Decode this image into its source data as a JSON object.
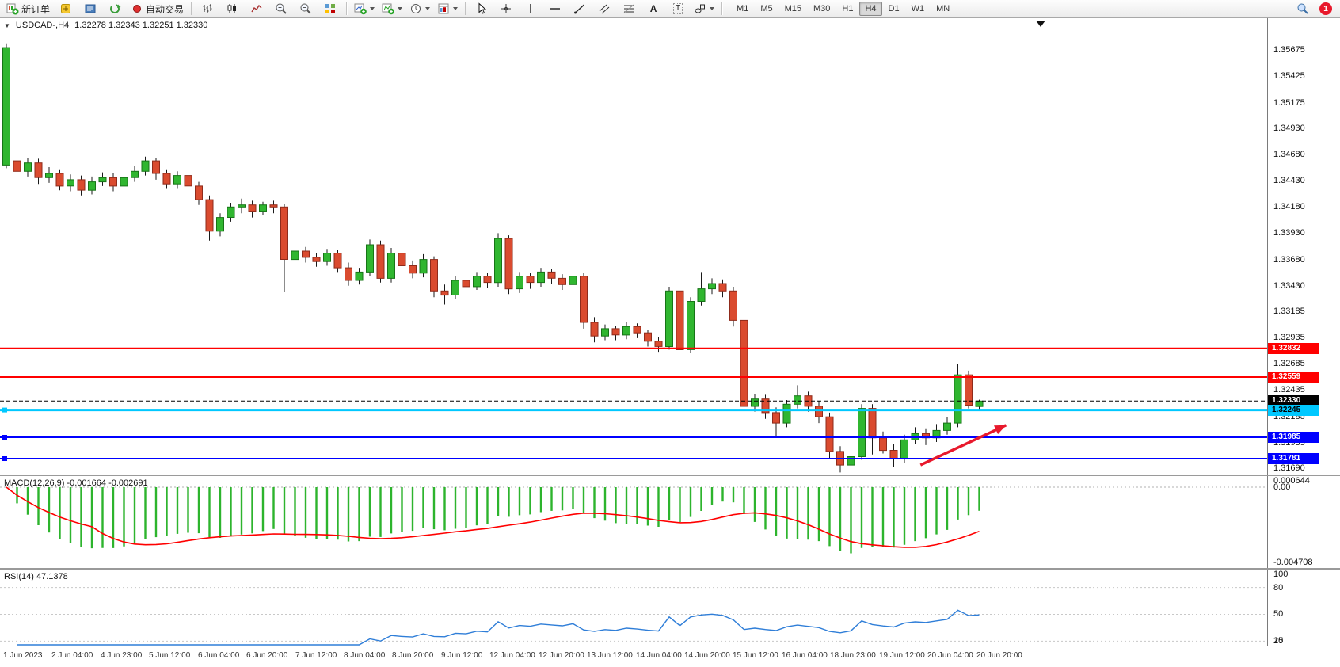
{
  "toolbar": {
    "new_order": "新订单",
    "auto_trading": "自动交易",
    "text_tool": "A",
    "label_tool": "T",
    "timeframes": [
      "M1",
      "M5",
      "M15",
      "M30",
      "H1",
      "H4",
      "D1",
      "W1",
      "MN"
    ],
    "active_timeframe": "H4",
    "notification_count": "1"
  },
  "chart": {
    "expander": "▼",
    "symbol": "USDCAD-,H4",
    "ohlc": "1.32278 1.32343 1.32251 1.32330",
    "price_axis_labels": [
      "1.35675",
      "1.35425",
      "1.35175",
      "1.34930",
      "1.34680",
      "1.34430",
      "1.34180",
      "1.33930",
      "1.33680",
      "1.33430",
      "1.33185",
      "1.32935",
      "1.32685",
      "1.32435",
      "1.32185",
      "1.31935",
      "1.31690"
    ],
    "scale": {
      "top_price": 1.3598,
      "bottom_price": 1.3163
    },
    "colors": {
      "bull": "#30b630",
      "bear": "#da4b2f",
      "wick": "#1a1a1a",
      "bull_border": "#177417",
      "bear_border": "#8f2b1b"
    },
    "levels": [
      {
        "name": "resistance-1",
        "price": 1.32832,
        "label": "1.32832",
        "color": "#ff0000",
        "width": 2,
        "dashed": false,
        "text": "#ffffff",
        "handles": false
      },
      {
        "name": "resistance-2",
        "price": 1.32559,
        "label": "1.32559",
        "color": "#ff0000",
        "width": 2,
        "dashed": false,
        "text": "#ffffff",
        "handles": false
      },
      {
        "name": "current-bid",
        "price": 1.3233,
        "label": "1.32330",
        "color": "#000000",
        "width": 1,
        "dashed": true,
        "text": "#ffffff",
        "handles": false
      },
      {
        "name": "support-aqua",
        "price": 1.32245,
        "label": "1.32245",
        "color": "#00c8ff",
        "width": 3,
        "dashed": false,
        "text": "#000000",
        "handles": true
      },
      {
        "name": "support-1",
        "price": 1.31985,
        "label": "1.31985",
        "color": "#0000ff",
        "width": 2,
        "dashed": false,
        "text": "#ffffff",
        "handles": true
      },
      {
        "name": "support-2",
        "price": 1.31781,
        "label": "1.31781",
        "color": "#0000ff",
        "width": 2,
        "dashed": false,
        "text": "#ffffff",
        "handles": true
      }
    ],
    "arrow": {
      "from_bar": 85.5,
      "from_price": 1.3172,
      "to_bar": 93.5,
      "to_price": 1.321,
      "color": "#e8192c"
    }
  },
  "macd": {
    "label": "MACD(12,26,9) -0.001664 -0.002691",
    "params": {
      "fast": 12,
      "slow": 26,
      "signal": 9
    },
    "axis_labels": [
      "0.000644",
      "0.00",
      "-0.004708"
    ],
    "scale_max": 0.000644,
    "scale_min": -0.004708,
    "histogram_color": "#2db42d",
    "signal_color": "#ff0000"
  },
  "rsi": {
    "label": "RSI(14) 47.1378",
    "period": 14,
    "value": 47.1378,
    "axis_labels": [
      "100",
      "80",
      "50",
      "20",
      "15"
    ],
    "levels": [
      80,
      50,
      20
    ],
    "line_color": "#2f7ed8",
    "scale_max": 100,
    "scale_min": 15
  },
  "chart_data": {
    "type": "candlestick",
    "symbol": "USDCAD-",
    "timeframe": "H4",
    "title": "USDCAD-,H4",
    "ohlc_current": {
      "open": 1.32278,
      "high": 1.32343,
      "low": 1.32251,
      "close": 1.3233
    },
    "y_range": [
      1.3163,
      1.3598
    ],
    "x_labels": [
      "1 Jun 2023",
      "2 Jun 04:00",
      "4 Jun 23:00",
      "5 Jun 12:00",
      "6 Jun 04:00",
      "6 Jun 20:00",
      "7 Jun 12:00",
      "8 Jun 04:00",
      "8 Jun 20:00",
      "9 Jun 12:00",
      "12 Jun 04:00",
      "12 Jun 20:00",
      "13 Jun 12:00",
      "14 Jun 04:00",
      "14 Jun 20:00",
      "15 Jun 12:00",
      "16 Jun 04:00",
      "18 Jun 23:00",
      "19 Jun 12:00",
      "20 Jun 04:00",
      "20 Jun 20:00"
    ],
    "indicators": [
      {
        "name": "MACD",
        "params": [
          12,
          26,
          9
        ],
        "values": [
          -0.001664,
          -0.002691
        ]
      },
      {
        "name": "RSI",
        "params": [
          14
        ],
        "value": 47.1378
      }
    ],
    "candles": [
      [
        1.3458,
        1.3574,
        1.3455,
        1.357
      ],
      [
        1.3462,
        1.3468,
        1.3448,
        1.3452
      ],
      [
        1.3452,
        1.3465,
        1.3447,
        1.346
      ],
      [
        1.346,
        1.3464,
        1.344,
        1.3446
      ],
      [
        1.3446,
        1.3456,
        1.3441,
        1.345
      ],
      [
        1.345,
        1.3454,
        1.3434,
        1.3438
      ],
      [
        1.3438,
        1.3449,
        1.3433,
        1.3444
      ],
      [
        1.3444,
        1.3448,
        1.3429,
        1.3434
      ],
      [
        1.3434,
        1.3447,
        1.343,
        1.3442
      ],
      [
        1.3442,
        1.3451,
        1.3438,
        1.3446
      ],
      [
        1.3446,
        1.345,
        1.3433,
        1.3438
      ],
      [
        1.3438,
        1.345,
        1.3434,
        1.3446
      ],
      [
        1.3446,
        1.3457,
        1.3442,
        1.3452
      ],
      [
        1.3452,
        1.3466,
        1.3448,
        1.3462
      ],
      [
        1.3462,
        1.3465,
        1.3444,
        1.345
      ],
      [
        1.345,
        1.3454,
        1.3436,
        1.344
      ],
      [
        1.344,
        1.3452,
        1.3436,
        1.3448
      ],
      [
        1.3448,
        1.3453,
        1.3433,
        1.3438
      ],
      [
        1.3438,
        1.3442,
        1.342,
        1.3425
      ],
      [
        1.3425,
        1.3429,
        1.3386,
        1.3395
      ],
      [
        1.3395,
        1.3412,
        1.339,
        1.3408
      ],
      [
        1.3408,
        1.3422,
        1.3404,
        1.3418
      ],
      [
        1.3418,
        1.3426,
        1.3412,
        1.342
      ],
      [
        1.342,
        1.3424,
        1.3408,
        1.3414
      ],
      [
        1.3414,
        1.3423,
        1.341,
        1.342
      ],
      [
        1.342,
        1.3424,
        1.3412,
        1.3418
      ],
      [
        1.3418,
        1.3421,
        1.3337,
        1.3368
      ],
      [
        1.3368,
        1.338,
        1.3362,
        1.3376
      ],
      [
        1.3376,
        1.338,
        1.3365,
        1.337
      ],
      [
        1.337,
        1.3374,
        1.3361,
        1.3366
      ],
      [
        1.3366,
        1.3378,
        1.3362,
        1.3374
      ],
      [
        1.3374,
        1.3377,
        1.3356,
        1.336
      ],
      [
        1.336,
        1.3365,
        1.3343,
        1.3348
      ],
      [
        1.3348,
        1.336,
        1.3344,
        1.3356
      ],
      [
        1.3356,
        1.3387,
        1.3352,
        1.3382
      ],
      [
        1.3382,
        1.3386,
        1.3346,
        1.335
      ],
      [
        1.335,
        1.3379,
        1.3346,
        1.3374
      ],
      [
        1.3374,
        1.3378,
        1.3357,
        1.3362
      ],
      [
        1.3362,
        1.3367,
        1.335,
        1.3355
      ],
      [
        1.3355,
        1.3373,
        1.3351,
        1.3368
      ],
      [
        1.3368,
        1.3371,
        1.3332,
        1.3338
      ],
      [
        1.3338,
        1.3344,
        1.3325,
        1.3334
      ],
      [
        1.3334,
        1.3352,
        1.333,
        1.3348
      ],
      [
        1.3348,
        1.3352,
        1.3337,
        1.3342
      ],
      [
        1.3342,
        1.3356,
        1.3339,
        1.3352
      ],
      [
        1.3352,
        1.3355,
        1.3341,
        1.3346
      ],
      [
        1.3346,
        1.3393,
        1.3342,
        1.3388
      ],
      [
        1.3388,
        1.3391,
        1.3335,
        1.334
      ],
      [
        1.334,
        1.3356,
        1.3336,
        1.3352
      ],
      [
        1.3352,
        1.3355,
        1.334,
        1.3346
      ],
      [
        1.3346,
        1.336,
        1.3342,
        1.3356
      ],
      [
        1.3356,
        1.3359,
        1.3345,
        1.335
      ],
      [
        1.335,
        1.3354,
        1.3339,
        1.3344
      ],
      [
        1.3344,
        1.3356,
        1.334,
        1.3352
      ],
      [
        1.3352,
        1.3355,
        1.3302,
        1.3308
      ],
      [
        1.3308,
        1.3313,
        1.3289,
        1.3295
      ],
      [
        1.3295,
        1.3306,
        1.3291,
        1.3302
      ],
      [
        1.3302,
        1.3305,
        1.3291,
        1.3296
      ],
      [
        1.3296,
        1.3308,
        1.3292,
        1.3304
      ],
      [
        1.3304,
        1.3307,
        1.3293,
        1.3298
      ],
      [
        1.3298,
        1.3301,
        1.3285,
        1.329
      ],
      [
        1.329,
        1.3294,
        1.328,
        1.3285
      ],
      [
        1.3285,
        1.3342,
        1.3282,
        1.3338
      ],
      [
        1.3338,
        1.3341,
        1.327,
        1.3282
      ],
      [
        1.3282,
        1.3332,
        1.3279,
        1.3328
      ],
      [
        1.3328,
        1.3356,
        1.3324,
        1.334
      ],
      [
        1.334,
        1.335,
        1.3335,
        1.3345
      ],
      [
        1.3345,
        1.3349,
        1.3332,
        1.3338
      ],
      [
        1.3338,
        1.3342,
        1.3304,
        1.331
      ],
      [
        1.331,
        1.3313,
        1.3218,
        1.3228
      ],
      [
        1.3228,
        1.324,
        1.3223,
        1.3235
      ],
      [
        1.3235,
        1.3239,
        1.3216,
        1.3222
      ],
      [
        1.3222,
        1.3227,
        1.32,
        1.3212
      ],
      [
        1.3212,
        1.3234,
        1.3208,
        1.323
      ],
      [
        1.323,
        1.3248,
        1.3226,
        1.3238
      ],
      [
        1.3238,
        1.3242,
        1.3223,
        1.3228
      ],
      [
        1.3228,
        1.3233,
        1.3212,
        1.3218
      ],
      [
        1.3218,
        1.3222,
        1.3178,
        1.3185
      ],
      [
        1.3185,
        1.319,
        1.3165,
        1.3172
      ],
      [
        1.3172,
        1.3186,
        1.3169,
        1.318
      ],
      [
        1.318,
        1.323,
        1.3177,
        1.3226
      ],
      [
        1.3226,
        1.323,
        1.3182,
        1.3198
      ],
      [
        1.3198,
        1.3204,
        1.3183,
        1.3186
      ],
      [
        1.3186,
        1.3192,
        1.317,
        1.3178
      ],
      [
        1.3178,
        1.3201,
        1.3174,
        1.3196
      ],
      [
        1.3196,
        1.3208,
        1.3192,
        1.3202
      ],
      [
        1.3202,
        1.3207,
        1.3191,
        1.3198
      ],
      [
        1.3198,
        1.3211,
        1.3194,
        1.3205
      ],
      [
        1.3205,
        1.3218,
        1.3201,
        1.3212
      ],
      [
        1.3212,
        1.3268,
        1.3208,
        1.3258
      ],
      [
        1.3258,
        1.3262,
        1.3226,
        1.3229
      ],
      [
        1.32278,
        1.32343,
        1.32251,
        1.3233
      ]
    ]
  }
}
